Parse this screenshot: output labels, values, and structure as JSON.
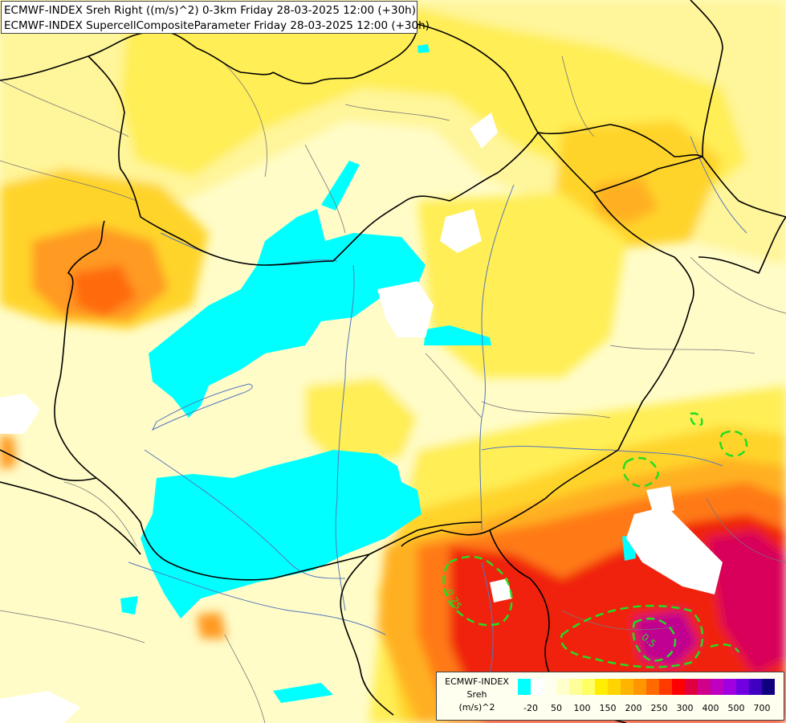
{
  "titles": {
    "line1": "ECMWF-INDEX Sreh Right ((m/s)^2) 0-3km Friday 28-03-2025 12:00 (+30h)",
    "line2": "ECMWF-INDEX SupercellCompositeParameter Friday 28-03-2025 12:00 (+30h)"
  },
  "legend": {
    "title_lines": [
      "ECMWF-INDEX",
      "Sreh",
      "(m/s)^2"
    ],
    "colors": [
      "#00ffff",
      "#ffffff",
      "#fffff0",
      "#ffffcc",
      "#ffff99",
      "#ffff66",
      "#ffee00",
      "#ffd400",
      "#ffb400",
      "#ff9600",
      "#ff6a00",
      "#ff3a00",
      "#ff0000",
      "#e00040",
      "#d0008a",
      "#c000c0",
      "#a000e0",
      "#7000e0",
      "#4000c0",
      "#100080"
    ],
    "tick_labels": [
      "-20",
      "50",
      "100",
      "150",
      "200",
      "250",
      "300",
      "400",
      "500",
      "700"
    ]
  },
  "map_contours": {
    "scp_labels": [
      "0.25",
      "0.5"
    ],
    "scp_color": "#22dd22"
  },
  "map_colors": {
    "background": "#fffcc8",
    "pale": "#ffffd8",
    "light": "#fff59a",
    "yellow": "#ffee55",
    "gold": "#ffd42a",
    "orange_light": "#ffb020",
    "orange": "#ff8c1a",
    "orange_dark": "#ff5a10",
    "red": "#f02010",
    "crimson": "#d8005a",
    "magenta": "#c00090",
    "cyan": "#00ffff",
    "white": "#ffffff",
    "border": "#000000",
    "river": "#5577bb",
    "region": "#777777"
  }
}
